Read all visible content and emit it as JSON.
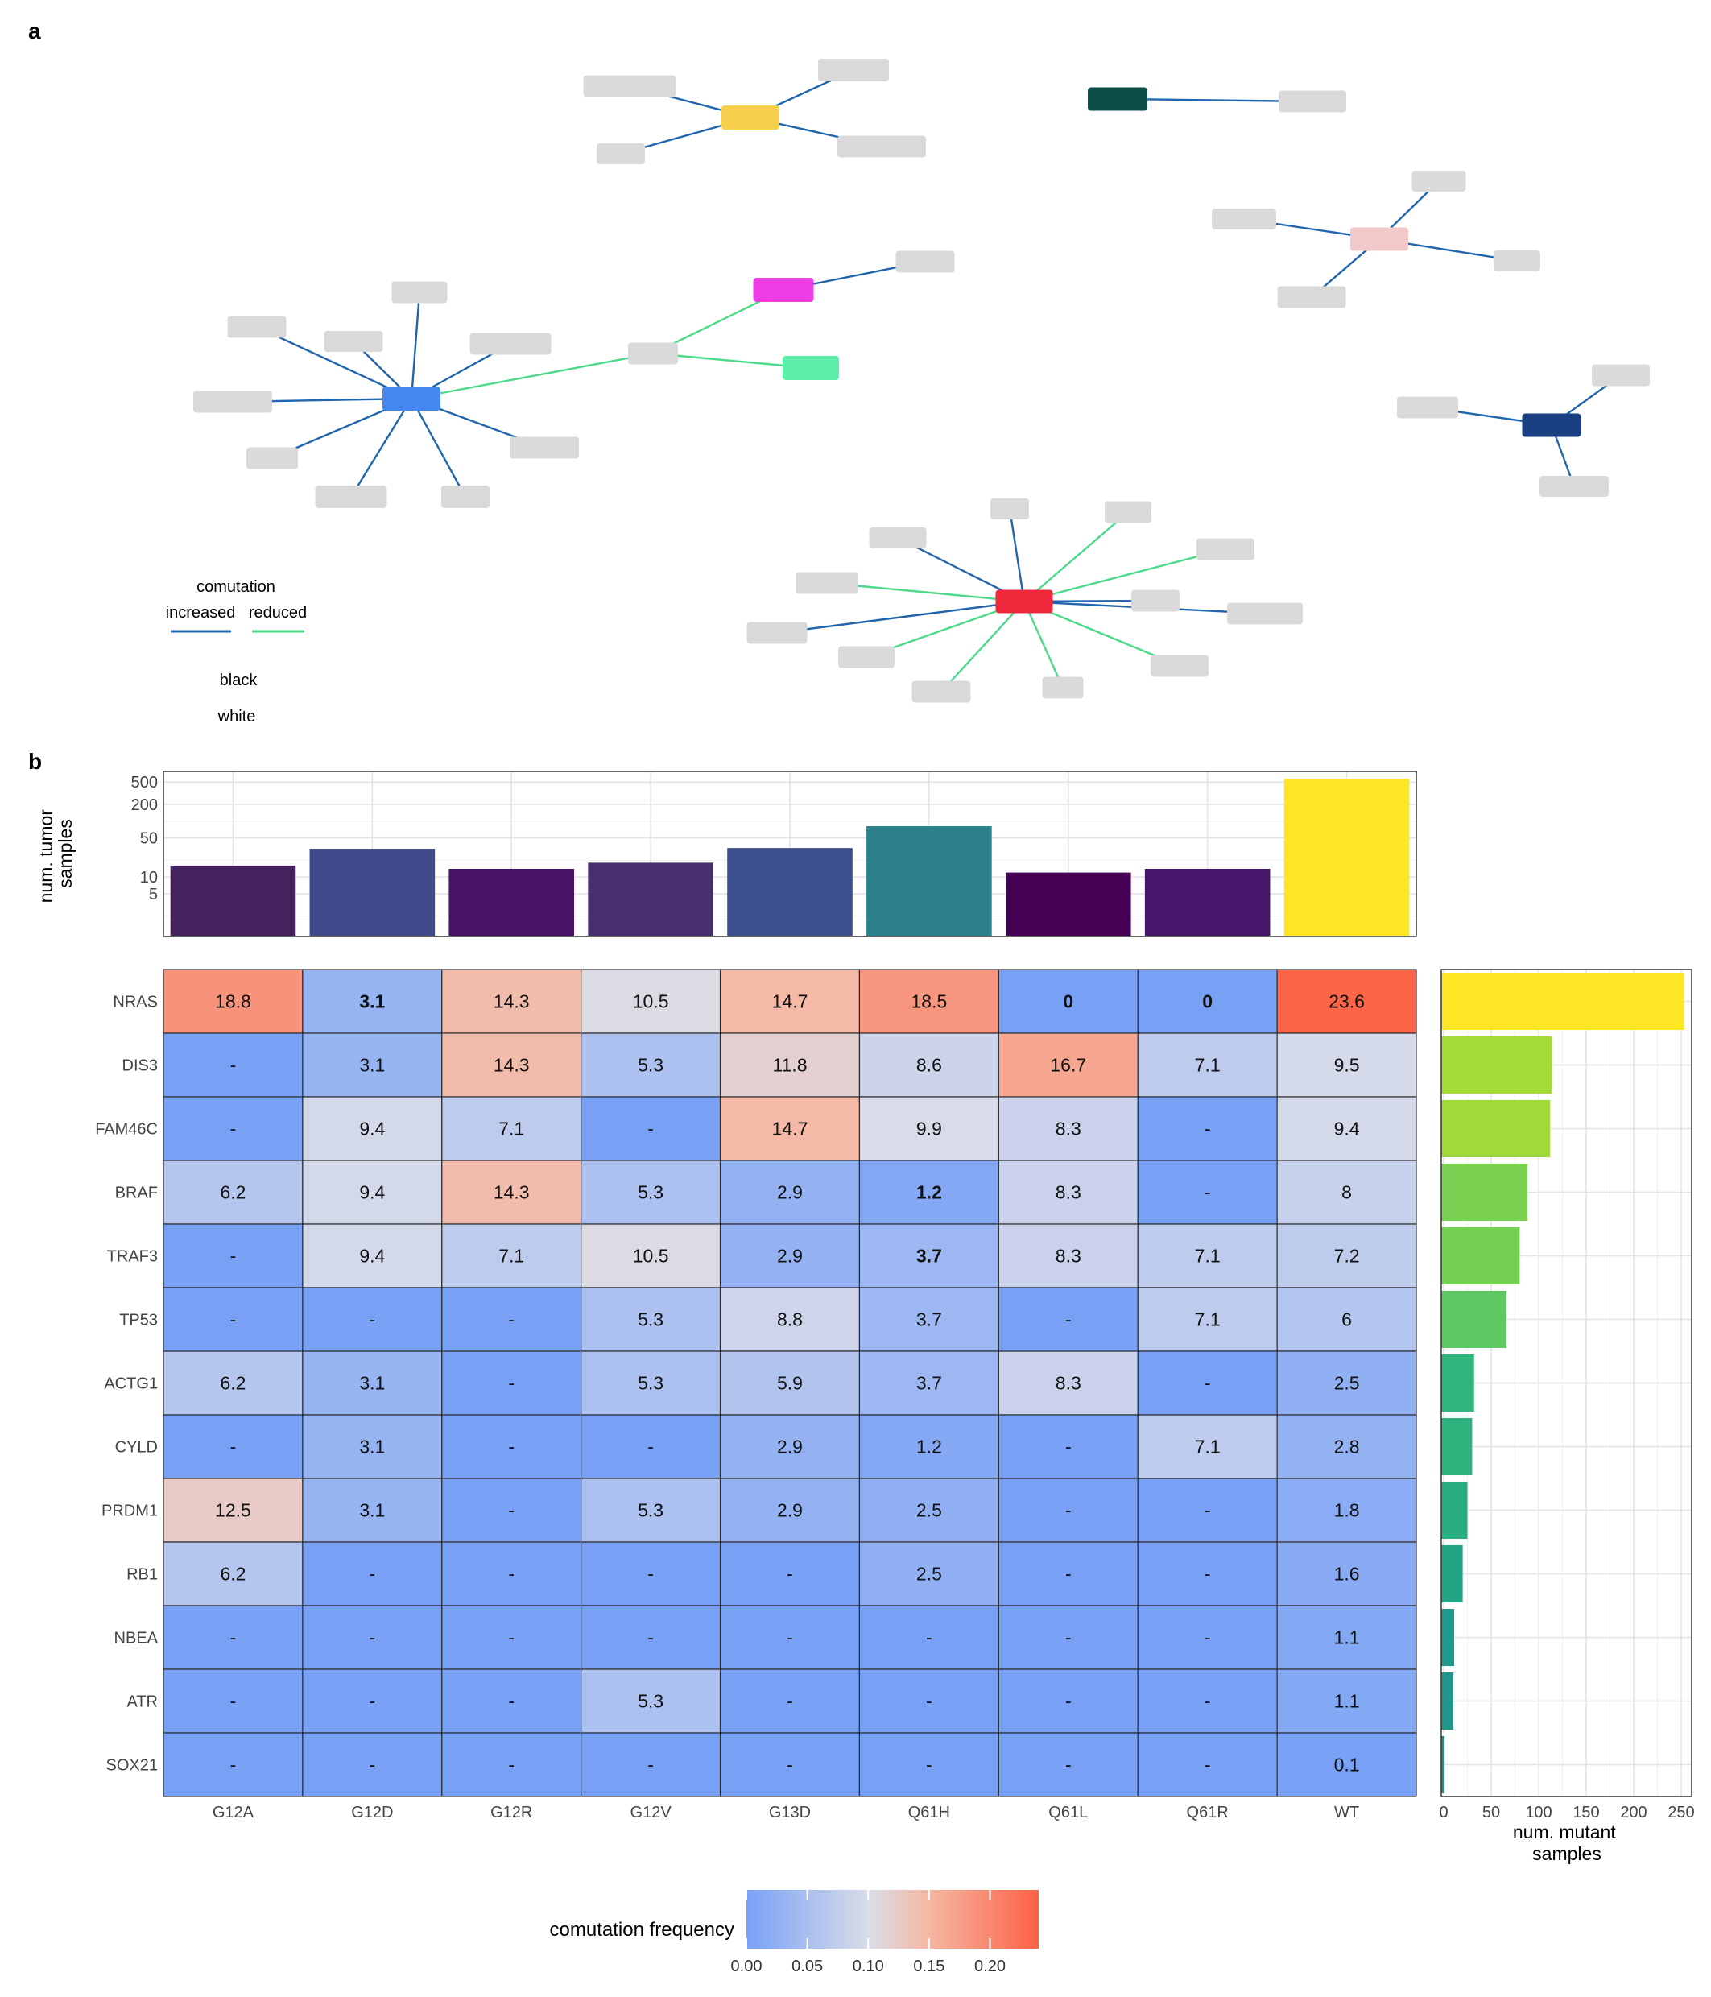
{
  "panels": {
    "a": "a",
    "b": "b"
  },
  "network": {
    "legend": {
      "title": "comutation",
      "increased_label": "increased",
      "reduced_label": "reduced",
      "note1": "black",
      "note2": "white",
      "colors": {
        "increased": "#2166ac",
        "reduced": "#4dd98a"
      }
    },
    "hub_colors": {
      "yellow": "#f6d04d",
      "dark_teal": "#0c4e48",
      "pink": "#f2c9c9",
      "magenta": "#ef3de6",
      "mint": "#5cf0a9",
      "blue": "#4387ef",
      "navy": "#1a3f82",
      "red": "#f0283c",
      "leaf": "#d9d9d9"
    }
  },
  "chart_data": [
    {
      "type": "bar",
      "categories": [
        "G12A",
        "G12D",
        "G12R",
        "G12V",
        "G13D",
        "Q61H",
        "Q61L",
        "Q61R",
        "WT"
      ],
      "values": [
        16,
        32,
        14,
        18,
        33,
        81,
        12,
        14,
        846
      ],
      "ylabel": "num. tumor\nsamples",
      "yscale": "log",
      "ytick_labels": [
        "5",
        "10",
        "50",
        "200",
        "500"
      ],
      "colors": [
        "#44235f",
        "#3e4a89",
        "#461366",
        "#482e6c",
        "#3b4f8d",
        "#2b8089",
        "#440154",
        "#46176a",
        "#fde725"
      ]
    },
    {
      "type": "heatmap",
      "rows": [
        "NRAS",
        "DIS3",
        "FAM46C",
        "BRAF",
        "TRAF3",
        "TP53",
        "ACTG1",
        "CYLD",
        "PRDM1",
        "RB1",
        "NBEA",
        "ATR",
        "SOX21"
      ],
      "columns": [
        "G12A",
        "G12D",
        "G12R",
        "G12V",
        "G13D",
        "Q61H",
        "Q61L",
        "Q61R",
        "WT"
      ],
      "cells": [
        [
          "18.8",
          "3.1",
          "14.3",
          "10.5",
          "14.7",
          "18.5",
          "0",
          "0",
          "23.6"
        ],
        [
          "-",
          "3.1",
          "14.3",
          "5.3",
          "11.8",
          "8.6",
          "16.7",
          "7.1",
          "9.5"
        ],
        [
          "-",
          "9.4",
          "7.1",
          "-",
          "14.7",
          "9.9",
          "8.3",
          "-",
          "9.4"
        ],
        [
          "6.2",
          "9.4",
          "14.3",
          "5.3",
          "2.9",
          "1.2",
          "8.3",
          "-",
          "8"
        ],
        [
          "-",
          "9.4",
          "7.1",
          "10.5",
          "2.9",
          "3.7",
          "8.3",
          "7.1",
          "7.2"
        ],
        [
          "-",
          "-",
          "-",
          "5.3",
          "8.8",
          "3.7",
          "-",
          "7.1",
          "6"
        ],
        [
          "6.2",
          "3.1",
          "-",
          "5.3",
          "5.9",
          "3.7",
          "8.3",
          "-",
          "2.5"
        ],
        [
          "-",
          "3.1",
          "-",
          "-",
          "2.9",
          "1.2",
          "-",
          "7.1",
          "2.8"
        ],
        [
          "12.5",
          "3.1",
          "-",
          "5.3",
          "2.9",
          "2.5",
          "-",
          "-",
          "1.8"
        ],
        [
          "6.2",
          "-",
          "-",
          "-",
          "-",
          "2.5",
          "-",
          "-",
          "1.6"
        ],
        [
          "-",
          "-",
          "-",
          "-",
          "-",
          "-",
          "-",
          "-",
          "1.1"
        ],
        [
          "-",
          "-",
          "-",
          "5.3",
          "-",
          "-",
          "-",
          "-",
          "1.1"
        ],
        [
          "-",
          "-",
          "-",
          "-",
          "-",
          "-",
          "-",
          "-",
          "0.1"
        ]
      ],
      "bold_cells": [
        [
          0,
          1
        ],
        [
          0,
          6
        ],
        [
          0,
          7
        ],
        [
          3,
          5
        ],
        [
          4,
          5
        ]
      ],
      "colorbar": {
        "title": "comutation frequency",
        "min": 0,
        "max": 0.24,
        "ticks": [
          "0.00",
          "0.05",
          "0.10",
          "0.15",
          "0.20"
        ],
        "colors": [
          "#78a1f6",
          "#dadde8",
          "#f5b8a4",
          "#fd6145"
        ]
      }
    },
    {
      "type": "bar",
      "orientation": "horizontal",
      "categories": [
        "NRAS",
        "DIS3",
        "FAM46C",
        "BRAF",
        "TRAF3",
        "TP53",
        "ACTG1",
        "CYLD",
        "PRDM1",
        "RB1",
        "NBEA",
        "ATR",
        "SOX21"
      ],
      "values": [
        253,
        114,
        112,
        88,
        80,
        66,
        32,
        30,
        25,
        20,
        11,
        10,
        1
      ],
      "xlabel": "num. mutant\nsamples",
      "xlim": [
        0,
        260
      ],
      "xtick_labels": [
        "0",
        "50",
        "100",
        "150",
        "200",
        "250"
      ],
      "colors": [
        "#fde725",
        "#a5db36",
        "#a0da39",
        "#7ad151",
        "#75d054",
        "#5ec962",
        "#2fb47c",
        "#2db27d",
        "#28ae80",
        "#21a585",
        "#1e9b8a",
        "#1f988b",
        "#20928c"
      ]
    }
  ]
}
